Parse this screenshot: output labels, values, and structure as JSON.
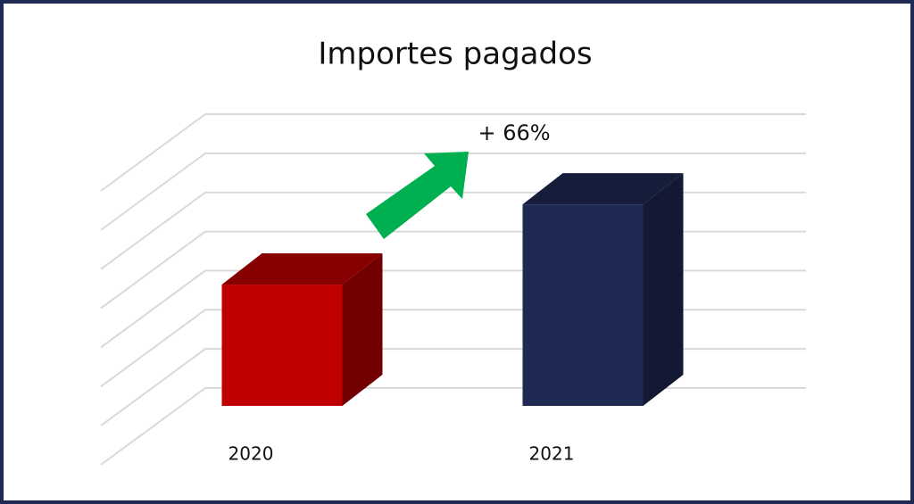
{
  "chart_data": {
    "type": "bar3d",
    "title": "Importes pagados",
    "categories": [
      "2020",
      "2021"
    ],
    "values": [
      3.1,
      5.15
    ],
    "colors": [
      "#c00000",
      "#1f2a54"
    ],
    "ylim": [
      0,
      7
    ],
    "yticks": [
      0,
      1,
      2,
      3,
      4,
      5,
      6,
      7
    ],
    "grid": true,
    "annotation": "+ 66%"
  }
}
